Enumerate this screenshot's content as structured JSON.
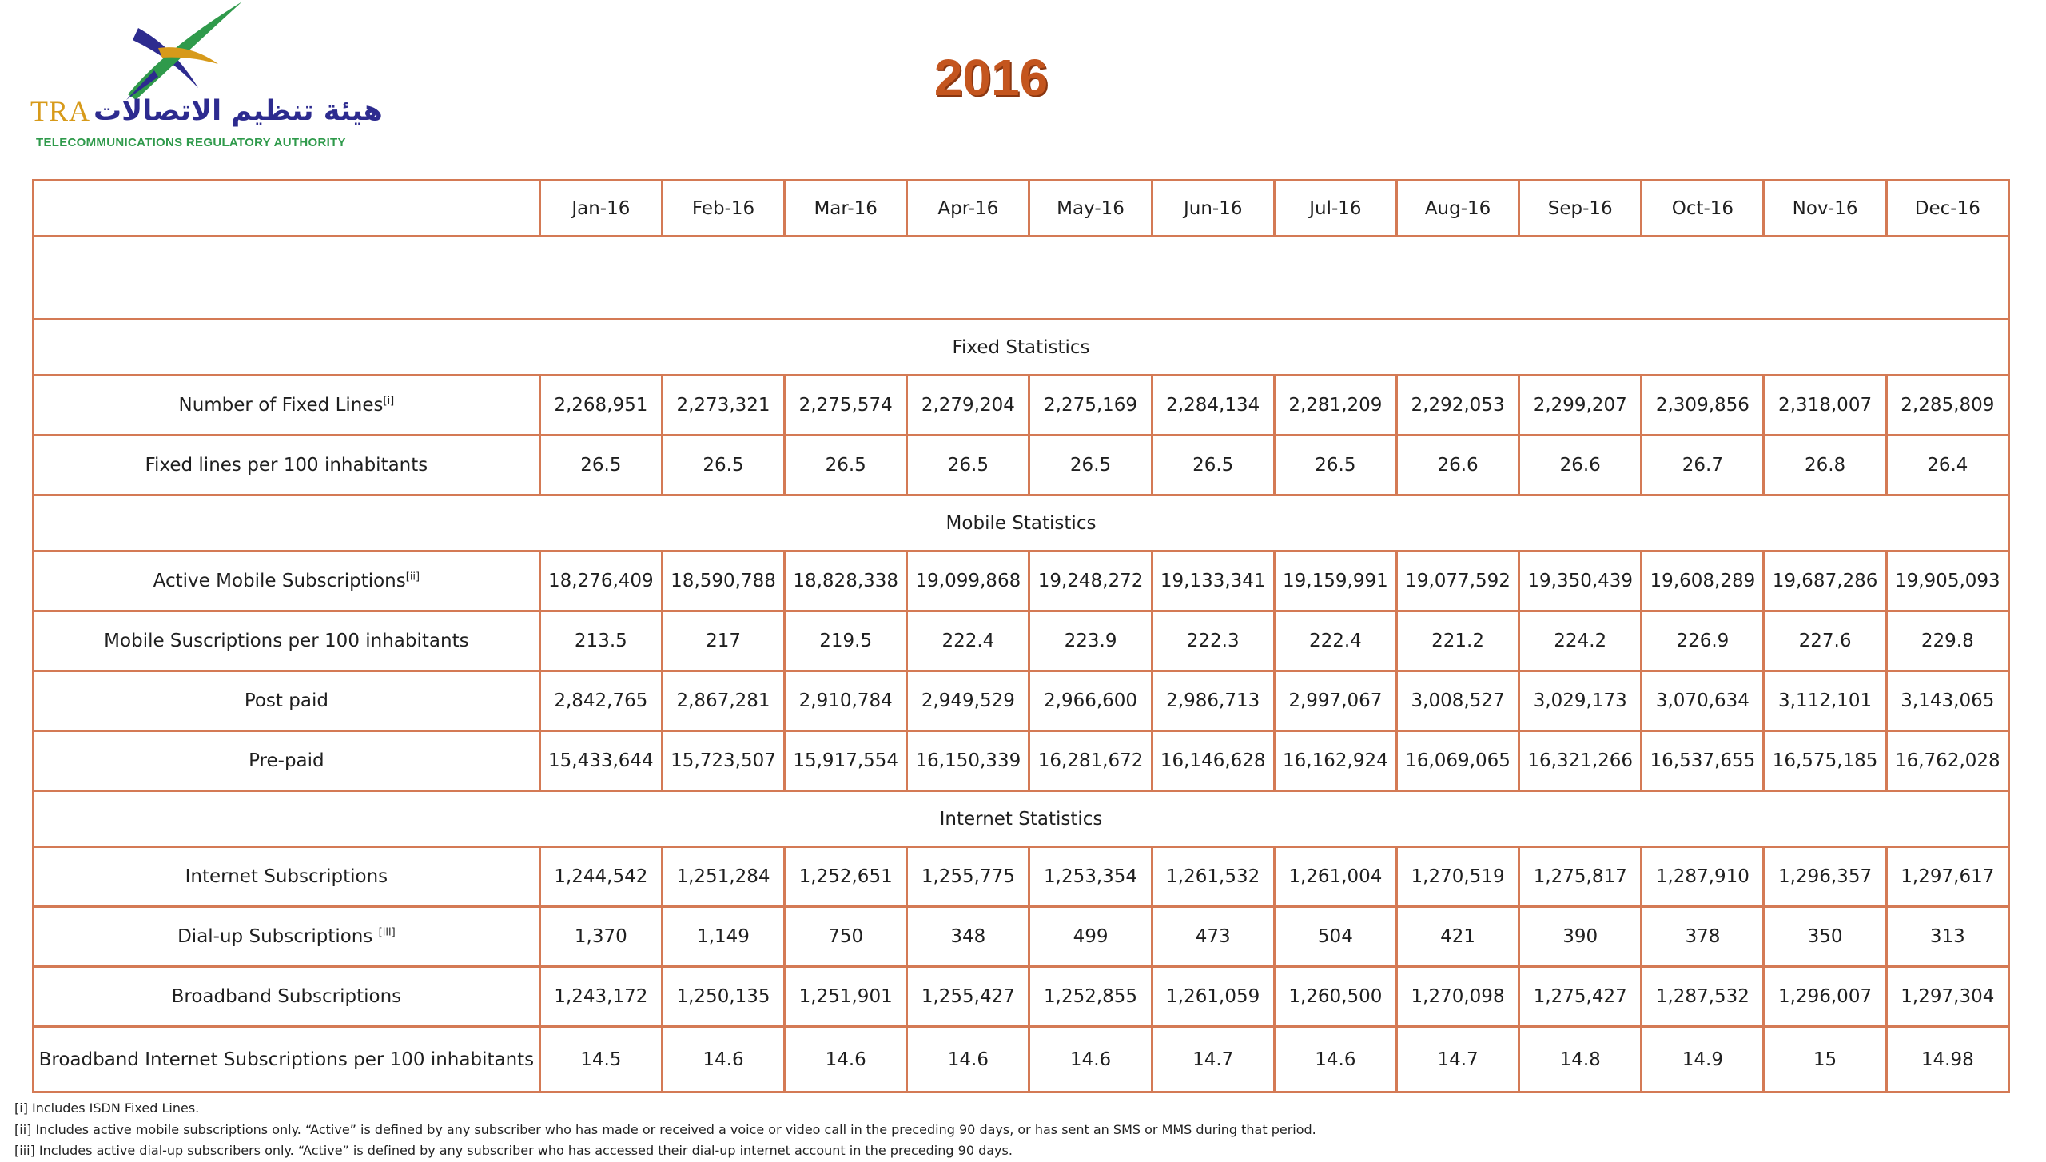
{
  "logo": {
    "tra": "TRA",
    "arabic": "هيئة تنظيم الاتصالات",
    "subtitle": "TELECOMMUNICATIONS REGULATORY AUTHORITY"
  },
  "title": "2016",
  "months": [
    "Jan-16",
    "Feb-16",
    "Mar-16",
    "Apr-16",
    "May-16",
    "Jun-16",
    "Jul-16",
    "Aug-16",
    "Sep-16",
    "Oct-16",
    "Nov-16",
    "Dec-16"
  ],
  "sections": {
    "fixed": "Fixed Statistics",
    "mobile": "Mobile Statistics",
    "internet": "Internet  Statistics"
  },
  "rows": {
    "fixed_lines": {
      "label": "Number of  Fixed Lines",
      "sup": "[i]",
      "values": [
        "2,268,951",
        "2,273,321",
        "2,275,574",
        "2,279,204",
        "2,275,169",
        "2,284,134",
        "2,281,209",
        "2,292,053",
        "2,299,207",
        "2,309,856",
        "2,318,007",
        "2,285,809"
      ]
    },
    "fixed_per100": {
      "label": "Fixed lines per 100 inhabitants",
      "values": [
        "26.5",
        "26.5",
        "26.5",
        "26.5",
        "26.5",
        "26.5",
        "26.5",
        "26.6",
        "26.6",
        "26.7",
        "26.8",
        "26.4"
      ]
    },
    "active_mobile": {
      "label": "Active Mobile Subscriptions",
      "sup": "[ii]",
      "values": [
        "18,276,409",
        "18,590,788",
        "18,828,338",
        "19,099,868",
        "19,248,272",
        "19,133,341",
        "19,159,991",
        "19,077,592",
        "19,350,439",
        "19,608,289",
        "19,687,286",
        "19,905,093"
      ]
    },
    "mobile_per100": {
      "label": "Mobile Suscriptions per 100 inhabitants",
      "values": [
        "213.5",
        "217",
        "219.5",
        "222.4",
        "223.9",
        "222.3",
        "222.4",
        "221.2",
        "224.2",
        "226.9",
        "227.6",
        "229.8"
      ]
    },
    "post_paid": {
      "label": "Post paid",
      "values": [
        "2,842,765",
        "2,867,281",
        "2,910,784",
        "2,949,529",
        "2,966,600",
        "2,986,713",
        "2,997,067",
        "3,008,527",
        "3,029,173",
        "3,070,634",
        "3,112,101",
        "3,143,065"
      ]
    },
    "pre_paid": {
      "label": "Pre-paid",
      "values": [
        "15,433,644",
        "15,723,507",
        "15,917,554",
        "16,150,339",
        "16,281,672",
        "16,146,628",
        "16,162,924",
        "16,069,065",
        "16,321,266",
        "16,537,655",
        "16,575,185",
        "16,762,028"
      ]
    },
    "internet_subs": {
      "label": "Internet Subscriptions",
      "values": [
        "1,244,542",
        "1,251,284",
        "1,252,651",
        "1,255,775",
        "1,253,354",
        "1,261,532",
        "1,261,004",
        "1,270,519",
        "1,275,817",
        "1,287,910",
        "1,296,357",
        "1,297,617"
      ]
    },
    "dialup": {
      "label": "Dial-up Subscriptions ",
      "sup": "[iii]",
      "values": [
        "1,370",
        "1,149",
        "750",
        "348",
        "499",
        "473",
        "504",
        "421",
        "390",
        "378",
        "350",
        "313"
      ]
    },
    "broadband": {
      "label": "Broadband Subscriptions",
      "values": [
        "1,243,172",
        "1,250,135",
        "1,251,901",
        "1,255,427",
        "1,252,855",
        "1,261,059",
        "1,260,500",
        "1,270,098",
        "1,275,427",
        "1,287,532",
        "1,296,007",
        "1,297,304"
      ]
    },
    "broadband_per100": {
      "label": "Broadband Internet Subscriptions per 100 inhabitants",
      "values": [
        "14.5",
        "14.6",
        "14.6",
        "14.6",
        "14.6",
        "14.7",
        "14.6",
        "14.7",
        "14.8",
        "14.9",
        "15",
        "14.98"
      ]
    }
  },
  "footnotes": [
    "[i] Includes ISDN Fixed Lines.",
    "[ii] Includes active mobile subscriptions only.  “Active” is defined by any subscriber who has made or received a voice or video call in the preceding 90 days, or has sent an SMS or MMS during that period.",
    "[iii] Includes active dial-up subscribers only.  “Active” is defined by any subscriber who has accessed their dial-up internet account in the preceding 90 days."
  ],
  "colors": {
    "border": "#d47a55",
    "title": "#c4551e",
    "logo_gold": "#d79a1a",
    "logo_blue": "#2d2b8f",
    "logo_green": "#2f9a4b"
  }
}
